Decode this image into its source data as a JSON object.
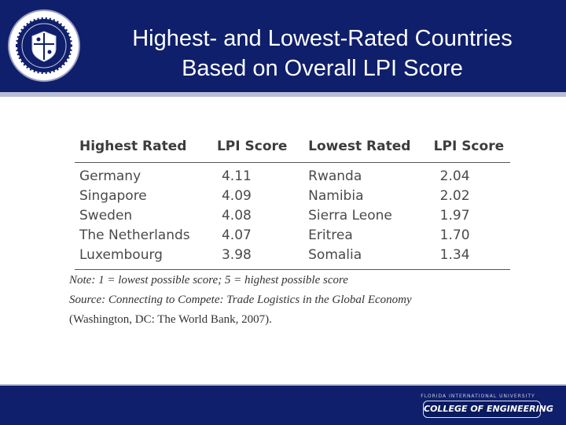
{
  "header": {
    "title_line1": "Highest- and Lowest-Rated Countries",
    "title_line2": "Based on Overall LPI Score"
  },
  "table": {
    "headers": [
      "Highest Rated",
      "LPI Score",
      "Lowest Rated",
      "LPI Score"
    ],
    "rows": [
      [
        "Germany",
        "4.11",
        "Rwanda",
        "2.04"
      ],
      [
        "Singapore",
        "4.09",
        "Namibia",
        "2.02"
      ],
      [
        "Sweden",
        "4.08",
        "Sierra Leone",
        "1.97"
      ],
      [
        "The Netherlands",
        "4.07",
        "Eritrea",
        "1.70"
      ],
      [
        "Luxembourg",
        "3.98",
        "Somalia",
        "1.34"
      ]
    ]
  },
  "notes": {
    "note": "Note: 1 = lowest possible score; 5 = highest possible score",
    "source": "Source: Connecting to Compete: Trade Logistics in the Global Economy",
    "source_pub": "(Washington, DC: The World Bank, 2007)."
  },
  "footer": {
    "org_small": "FLORIDA INTERNATIONAL UNIVERSITY",
    "college": "COLLEGE OF ENGINEERING"
  },
  "colors": {
    "band": "#0f1f6b",
    "stripe": "#b9bdd6"
  }
}
